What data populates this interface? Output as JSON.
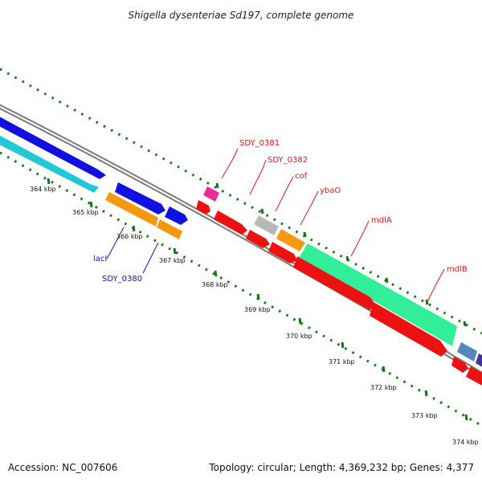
{
  "title": "Shigella dysenteriae Sd197, complete genome",
  "footer": {
    "accession": "Accession: NC_007606",
    "summary": "Topology: circular; Length: 4,369,232 bp; Genes: 4,377"
  },
  "ticks": [
    "364 kbp",
    "365 kbp",
    "366 kbp",
    "367 kbp",
    "368 kbp",
    "369 kbp",
    "370 kbp",
    "371 kbp",
    "372 kbp",
    "373 kbp",
    "374 kbp"
  ],
  "labels": {
    "SDY_0381": "SDY_0381",
    "SDY_0382": "SDY_0382",
    "cof": "cof",
    "ybaO": "ybaO",
    "mdlA": "mdlA",
    "mdlB": "mdlB",
    "lacI": "lacI",
    "SDY_0380": "SDY_0380"
  },
  "colors": {
    "blue": "#1010e0",
    "cyan": "#22c8d8",
    "orange": "#f59a10",
    "red": "#ee1111",
    "magenta": "#ee2a98",
    "gray": "#b8b8b8",
    "mint": "#33ee99",
    "steel": "#5588bb",
    "purple": "#443399",
    "green_tick": "#117711",
    "red_label": "#ee1111",
    "blue_label": "#1010cc"
  }
}
